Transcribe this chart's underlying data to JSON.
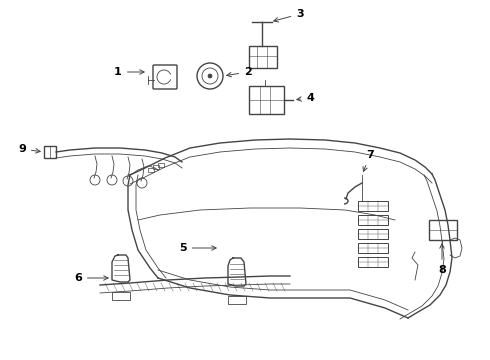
{
  "bg_color": "#ffffff",
  "line_color": "#444444",
  "label_color": "#000000",
  "fig_width": 4.9,
  "fig_height": 3.6,
  "dpi": 100
}
